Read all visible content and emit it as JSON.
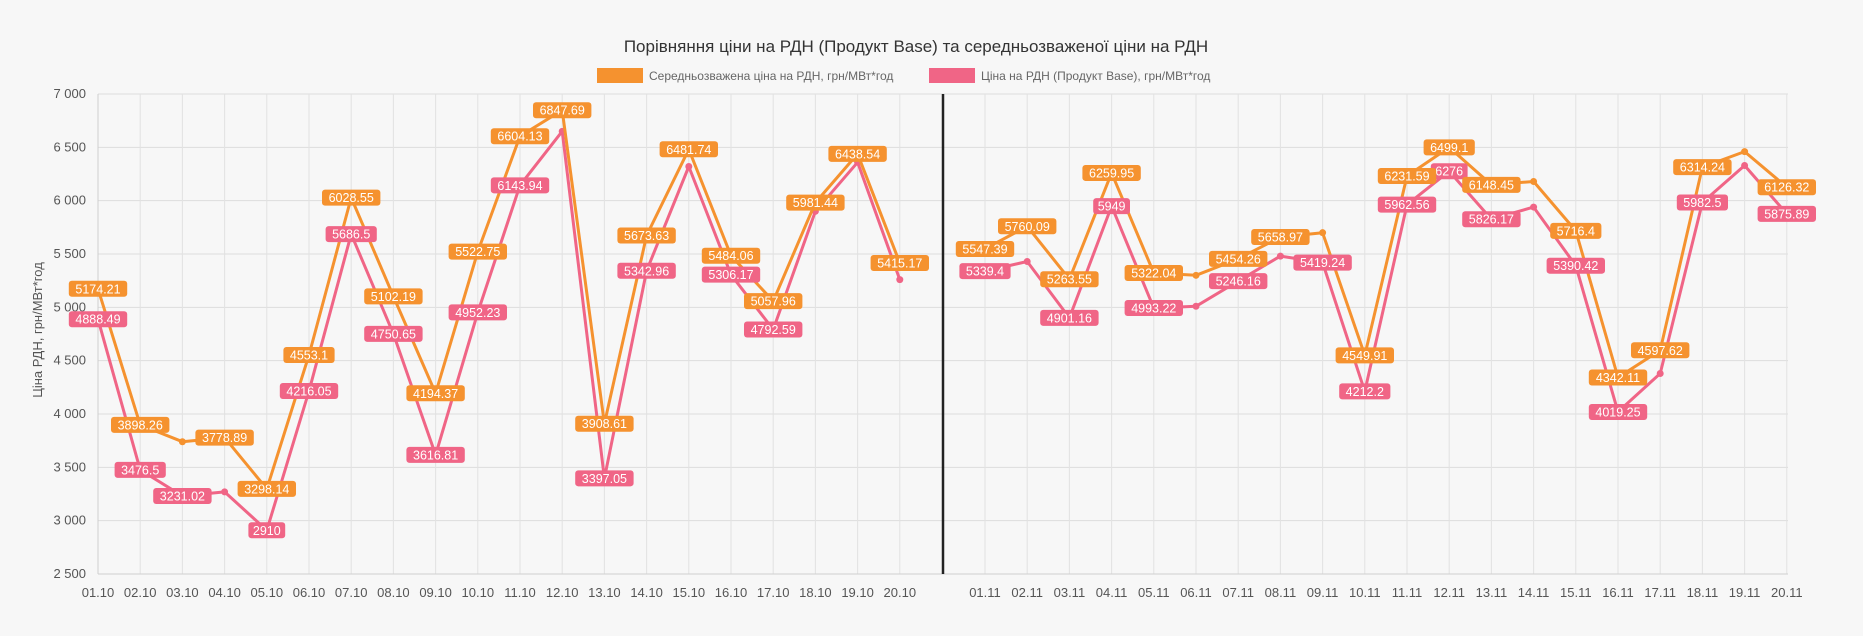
{
  "chart_data": {
    "type": "line",
    "title": "Порівняння ціни на РДН (Продукт Base) та середньозваженої ціни на РДН",
    "ylabel": "Ціна РДН, грн/МВт*год",
    "xlabel": "",
    "ylim": [
      2500,
      7000
    ],
    "yticks": [
      "2 500",
      "3 000",
      "3 500",
      "4 000",
      "4 500",
      "5 000",
      "5 500",
      "6 000",
      "6 500",
      "7 000"
    ],
    "grid": true,
    "legend_position": "top",
    "categories": [
      "01.10",
      "02.10",
      "03.10",
      "04.10",
      "05.10",
      "06.10",
      "07.10",
      "08.10",
      "09.10",
      "10.10",
      "11.10",
      "12.10",
      "13.10",
      "14.10",
      "15.10",
      "16.10",
      "17.10",
      "18.10",
      "19.10",
      "20.10",
      "01.11",
      "02.11",
      "03.11",
      "04.11",
      "05.11",
      "06.11",
      "07.11",
      "08.11",
      "09.11",
      "10.11",
      "11.11",
      "12.11",
      "13.11",
      "14.11",
      "15.11",
      "16.11",
      "17.11",
      "18.11",
      "19.11",
      "20.11"
    ],
    "gap_after_index": 19,
    "series": [
      {
        "name": "Середньозважена ціна на РДН, грн/МВт*год",
        "color": "#f5922f",
        "values": [
          5174.21,
          3898.26,
          3740,
          3778.89,
          3298.14,
          4553.1,
          6028.55,
          5102.19,
          4194.37,
          5522.75,
          6604.13,
          6847.69,
          3908.61,
          5673.63,
          6481.74,
          5484.06,
          5057.96,
          5981.44,
          6438.54,
          5415.17,
          5547.39,
          5760.09,
          5263.55,
          6259.95,
          5322.04,
          5300,
          5454.26,
          5658.97,
          5700,
          4549.91,
          6231.59,
          6499.1,
          6148.45,
          6180,
          5716.4,
          4342.11,
          4597.62,
          6314.24,
          6460,
          6126.32
        ],
        "labels": [
          "5174.21",
          "3898.26",
          "",
          "3778.89",
          "3298.14",
          "4553.1",
          "6028.55",
          "5102.19",
          "4194.37",
          "5522.75",
          "6604.13",
          "6847.69",
          "3908.61",
          "5673.63",
          "6481.74",
          "5484.06",
          "5057.96",
          "5981.44",
          "6438.54",
          "5415.17",
          "5547.39",
          "5760.09",
          "5263.55",
          "6259.95",
          "5322.04",
          "",
          "5454.26",
          "5658.97",
          "",
          "4549.91",
          "6231.59",
          "6499.1",
          "6148.45",
          "",
          "5716.4",
          "4342.11",
          "4597.62",
          "6314.24",
          "",
          "6126.32"
        ]
      },
      {
        "name": "Ціна на РДН (Продукт Base), грн/МВт*год",
        "color": "#f06586",
        "values": [
          4888.49,
          3476.5,
          3231.02,
          3270,
          2910,
          4216.05,
          5686.5,
          4750.65,
          3616.81,
          4952.23,
          6143.94,
          6650,
          3397.05,
          5342.96,
          6320,
          5306.17,
          4792.59,
          5900,
          6360,
          5260,
          5339.4,
          5430,
          4901.16,
          5949,
          4993.22,
          5010,
          5246.16,
          5480,
          5419.24,
          4212.2,
          5962.56,
          6276,
          5826.17,
          5940,
          5390.42,
          4019.25,
          4380,
          5982.5,
          6330,
          5875.89
        ],
        "labels": [
          "4888.49",
          "3476.5",
          "3231.02",
          "",
          "2910",
          "4216.05",
          "5686.5",
          "4750.65",
          "3616.81",
          "4952.23",
          "6143.94",
          "",
          "3397.05",
          "5342.96",
          "",
          "5306.17",
          "4792.59",
          "",
          "",
          "",
          "5339.4",
          "",
          "4901.16",
          "5949",
          "4993.22",
          "",
          "5246.16",
          "",
          "5419.24",
          "4212.2",
          "5962.56",
          "6276",
          "5826.17",
          "",
          "5390.42",
          "4019.25",
          "",
          "5982.5",
          "",
          "5875.89"
        ]
      }
    ]
  }
}
